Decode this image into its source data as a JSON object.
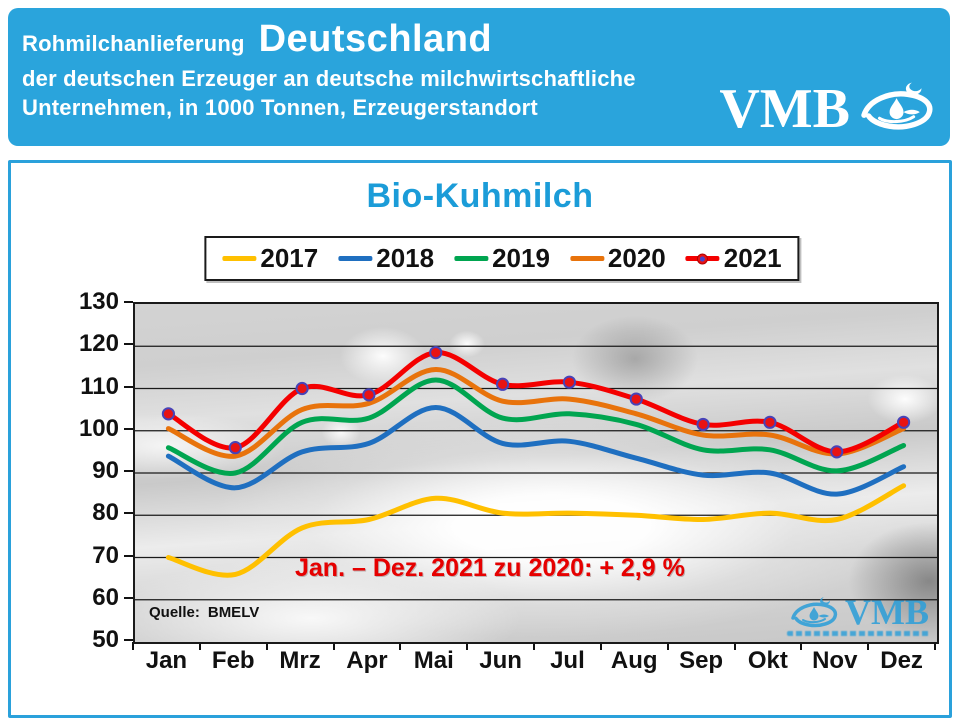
{
  "header": {
    "title_small": "Rohmilchanlieferung",
    "title_big": "Deutschland",
    "subtitle_line1": "der deutschen Erzeuger an deutsche milchwirtschaftliche",
    "subtitle_line2": "Unternehmen, in 1000 Tonnen, Erzeugerstandort",
    "logo_text": "VMB",
    "background_color": "#2AA4DC",
    "text_color": "#FFFFFF"
  },
  "panel": {
    "border_color": "#2AA1DB"
  },
  "watermark": {
    "text": "VMB",
    "color": "#2F9FD8"
  },
  "chart_data": {
    "type": "line",
    "title": "Bio-Kuhmilch",
    "title_color": "#1B9CD8",
    "xlabel": "",
    "ylabel": "",
    "unit": "1000 Tonnen",
    "ylim": [
      50,
      130
    ],
    "yticks": [
      130,
      120,
      110,
      100,
      90,
      80,
      70,
      60,
      50
    ],
    "grid": true,
    "legend_position": "top",
    "categories": [
      "Jan",
      "Feb",
      "Mrz",
      "Apr",
      "Mai",
      "Jun",
      "Jul",
      "Aug",
      "Sep",
      "Okt",
      "Nov",
      "Dez"
    ],
    "series": [
      {
        "name": "2017",
        "color": "#FFC000",
        "markers": false,
        "values": [
          70,
          66,
          77,
          79,
          84,
          80.5,
          80.5,
          80,
          79,
          80.5,
          79,
          87
        ]
      },
      {
        "name": "2018",
        "color": "#1F6FC0",
        "markers": false,
        "values": [
          94,
          86.5,
          95,
          97,
          105.5,
          97,
          97.5,
          93.5,
          89.5,
          90,
          85,
          91.5
        ]
      },
      {
        "name": "2019",
        "color": "#00A550",
        "markers": false,
        "values": [
          96,
          90,
          102,
          103,
          112,
          103,
          104,
          101.5,
          95.5,
          95.5,
          90.5,
          96.5
        ]
      },
      {
        "name": "2020",
        "color": "#E8730C",
        "markers": false,
        "values": [
          100.5,
          94,
          105,
          106.5,
          114.5,
          107,
          107.5,
          104,
          99,
          99,
          94.5,
          100.5
        ]
      },
      {
        "name": "2021",
        "color": "#F40000",
        "markers": true,
        "marker_fill": "#E81313",
        "marker_stroke": "#4743B8",
        "values": [
          104,
          96,
          110,
          108.5,
          118.5,
          111,
          111.5,
          107.5,
          101.5,
          102,
          95,
          102
        ]
      }
    ],
    "annotation": "Jan. – Dez. 2021 zu 2020: + 2,9 %",
    "annotation_color": "#E60000",
    "source_label": "Quelle:",
    "source_value": "BMELV"
  }
}
